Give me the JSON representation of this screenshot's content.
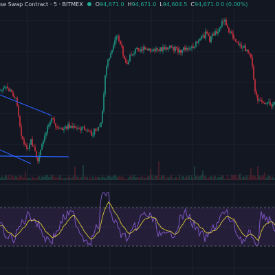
{
  "header": {
    "symbol_text": "se Swap Contract · 5 · BITMEX",
    "ohlc": [
      {
        "key": "O",
        "value": "94,671.0"
      },
      {
        "key": "H",
        "value": "94,671.0"
      },
      {
        "key": "L",
        "value": "94,604.5"
      },
      {
        "key": "C",
        "value": "94,671.0 0 (0.00%)"
      }
    ]
  },
  "colors": {
    "background": "#131722",
    "up": "#22ab94",
    "down": "#f23645",
    "trendline": "#2962ff",
    "rsi_line": "#7e57c2",
    "rsi_ma": "#ffeb3b",
    "rsi_band": "#2a2140",
    "grid": "#1e2230"
  },
  "indicators": {
    "rsi_upper": 70,
    "rsi_lower": 30
  }
}
